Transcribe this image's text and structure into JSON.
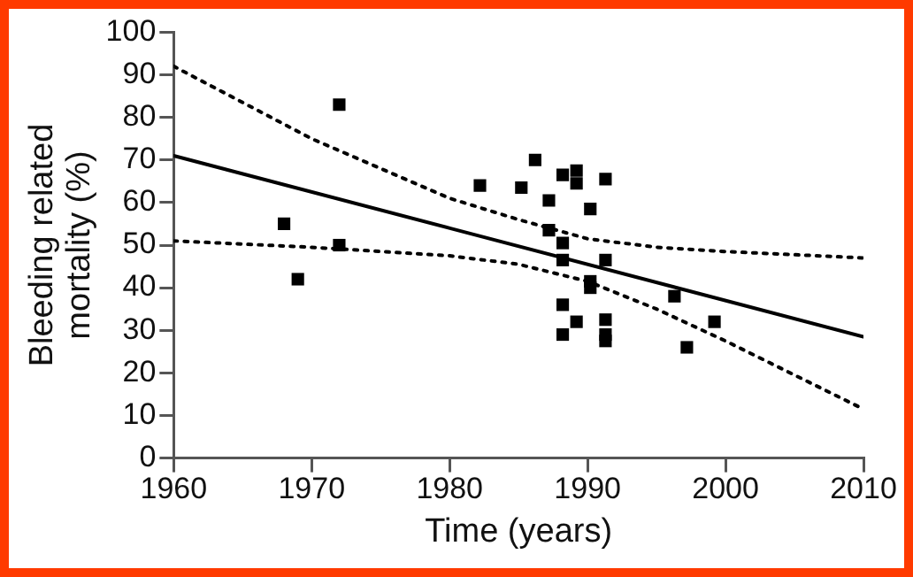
{
  "chart_data": {
    "type": "scatter",
    "xlabel": "Time (years)",
    "ylabel": "Bleeding related\nmortality (%)",
    "xlim": [
      1960,
      2010
    ],
    "xticks": [
      1960,
      1970,
      1980,
      1990,
      2000,
      2010
    ],
    "ylim": [
      0,
      100
    ],
    "yticks": [
      0,
      10,
      20,
      30,
      40,
      50,
      60,
      70,
      80,
      90,
      100
    ],
    "grid": false,
    "legend": false,
    "series": [
      {
        "type": "scatter",
        "color": "#000000",
        "marker": "square",
        "x": [
          1968,
          1969,
          1972,
          1972,
          1982.2,
          1986.2,
          1985.2,
          1988.2,
          1989.2,
          1989.2,
          1991.3,
          1987.2,
          1990.2,
          1987.2,
          1988.2,
          1988.2,
          1991.3,
          1990.2,
          1990.2,
          1988.2,
          1989.2,
          1991.3,
          1988.2,
          1991.3,
          1991.3,
          1996.3,
          1999.2,
          1997.2
        ],
        "values": [
          55,
          42,
          83,
          50,
          64,
          70,
          63.5,
          66.5,
          67.5,
          64.5,
          65.5,
          60.5,
          58.5,
          53.5,
          50.5,
          46.5,
          46.5,
          41.5,
          40,
          36,
          32,
          32.5,
          29,
          29,
          27.5,
          38,
          32,
          26
        ]
      },
      {
        "type": "line",
        "color": "#000000",
        "line_style": "solid",
        "marker": "none",
        "x": [
          1960,
          2010
        ],
        "values": [
          71,
          28.5
        ]
      },
      {
        "type": "line",
        "color": "#000000",
        "line_style": "dotted",
        "marker": "none",
        "x": [
          1960,
          1970,
          1980,
          1985,
          1990,
          1995,
          2000,
          2010
        ],
        "values": [
          92,
          75,
          61,
          56,
          51.5,
          49.5,
          48.5,
          47
        ]
      },
      {
        "type": "line",
        "color": "#000000",
        "line_style": "dotted",
        "marker": "none",
        "x": [
          1960,
          1970,
          1980,
          1985,
          1990,
          1995,
          2000,
          2010
        ],
        "values": [
          51,
          49.5,
          47.5,
          45.5,
          41.5,
          35,
          27.5,
          11.5
        ]
      }
    ]
  }
}
